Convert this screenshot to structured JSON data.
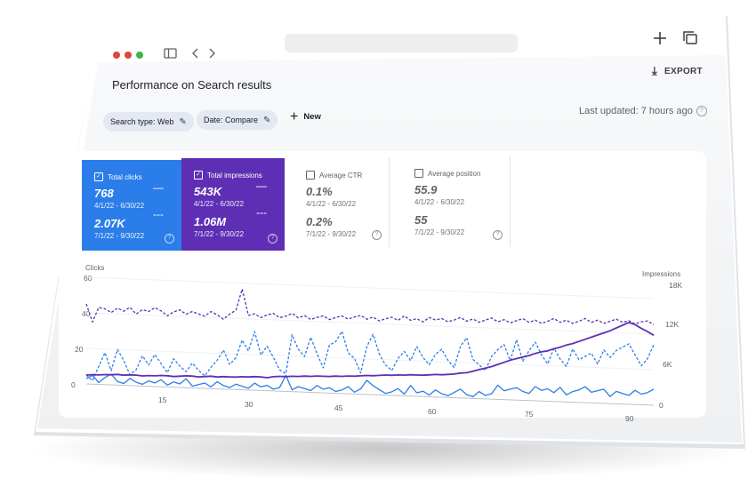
{
  "browser": {
    "traffic_lights": [
      "#e0443e",
      "#e0443e",
      "#3cb54a"
    ],
    "new_tab_icon": "plus-icon",
    "tabs_icon": "window-stack-icon"
  },
  "header": {
    "title": "Performance on Search results",
    "export_label": "EXPORT",
    "last_updated": "Last updated: 7 hours ago"
  },
  "filters": {
    "search_type": "Search type: Web",
    "date": "Date: Compare",
    "new_label": "New"
  },
  "metrics": [
    {
      "label": "Total clicks",
      "value1": "768",
      "range1": "4/1/22 - 6/30/22",
      "value2": "2.07K",
      "range2": "7/1/22 - 9/30/22",
      "checked": true,
      "color": "#2b7de9"
    },
    {
      "label": "Total impressions",
      "value1": "543K",
      "range1": "4/1/22 - 6/30/22",
      "value2": "1.06M",
      "range2": "7/1/22 - 9/30/22",
      "checked": true,
      "color": "#5e2fb4"
    },
    {
      "label": "Average CTR",
      "value1": "0.1%",
      "range1": "4/1/22 - 6/30/22",
      "value2": "0.2%",
      "range2": "7/1/22 - 9/30/22",
      "checked": false
    },
    {
      "label": "Average position",
      "value1": "55.9",
      "range1": "4/1/22 - 6/30/22",
      "value2": "55",
      "range2": "7/1/22 - 9/30/22",
      "checked": false
    }
  ],
  "chart_data": {
    "type": "line",
    "left_axis_label": "Clicks",
    "right_axis_label": "Impressions",
    "left_ticks": [
      "60",
      "40",
      "20",
      "0"
    ],
    "right_ticks": [
      "18K",
      "12K",
      "6K",
      "0"
    ],
    "x_ticks": [
      "15",
      "30",
      "45",
      "60",
      "75",
      "90"
    ],
    "left_ylim": [
      0,
      60
    ],
    "right_ylim": [
      0,
      18000
    ],
    "x_range": [
      1,
      92
    ],
    "grid": true,
    "series": [
      {
        "axis": "left",
        "style": "solid",
        "color": "#2b7de9",
        "values": [
          3,
          5,
          1,
          4,
          6,
          2,
          1,
          4,
          2,
          1,
          3,
          2,
          4,
          1,
          3,
          2,
          5,
          1,
          2,
          3,
          1,
          4,
          2,
          1,
          3,
          2,
          1,
          4,
          2,
          3,
          1,
          2,
          9,
          1,
          3,
          2,
          1,
          4,
          2,
          3,
          1,
          2,
          4,
          1,
          3,
          8,
          5,
          3,
          1,
          2,
          4,
          1,
          6,
          2,
          3,
          1,
          4,
          2,
          1,
          3,
          5,
          2,
          1,
          4,
          2,
          3,
          8,
          5,
          6,
          7,
          5,
          4,
          8,
          6,
          7,
          5,
          8,
          4,
          6,
          7,
          9,
          6,
          7,
          8,
          4,
          7,
          6,
          5,
          8,
          6,
          7,
          9
        ]
      },
      {
        "axis": "left",
        "style": "dashed",
        "color": "#2b7de9",
        "values": [
          5,
          2,
          10,
          18,
          8,
          20,
          14,
          6,
          9,
          17,
          12,
          18,
          13,
          8,
          16,
          12,
          9,
          14,
          10,
          7,
          12,
          16,
          22,
          14,
          18,
          28,
          22,
          33,
          20,
          25,
          19,
          12,
          10,
          32,
          24,
          20,
          31,
          22,
          14,
          27,
          29,
          35,
          23,
          20,
          12,
          27,
          34,
          23,
          17,
          14,
          21,
          25,
          20,
          28,
          22,
          18,
          24,
          27,
          21,
          17,
          29,
          34,
          22,
          19,
          16,
          24,
          28,
          31,
          22,
          34,
          22,
          28,
          33,
          26,
          21,
          30,
          24,
          20,
          30,
          24,
          26,
          28,
          22,
          30,
          26,
          30,
          32,
          34,
          28,
          22,
          26,
          34
        ]
      },
      {
        "axis": "right",
        "style": "solid",
        "color": "#5e2fb4",
        "values": [
          1500,
          1600,
          1600,
          1700,
          1700,
          1800,
          1700,
          1800,
          1800,
          1700,
          1800,
          1800,
          1900,
          1900,
          1800,
          1900,
          2000,
          2000,
          1900,
          2000,
          2100,
          2000,
          2100,
          2100,
          2100,
          2200,
          2200,
          2300,
          2300,
          2200,
          2400,
          2500,
          2500,
          2600,
          2600,
          2700,
          2700,
          2800,
          2800,
          2800,
          2900,
          2900,
          3000,
          3000,
          3100,
          3200,
          3200,
          3300,
          3400,
          3400,
          3500,
          3500,
          3600,
          3600,
          3600,
          3700,
          3800,
          3800,
          3900,
          4000,
          4200,
          4300,
          4600,
          4900,
          5200,
          5500,
          5900,
          6300,
          6700,
          7000,
          7300,
          7600,
          8000,
          8300,
          8500,
          8900,
          9200,
          9600,
          9900,
          10300,
          10700,
          11100,
          11500,
          11900,
          12300,
          12800,
          13300,
          13800,
          13500,
          12900,
          12400,
          11800
        ]
      },
      {
        "axis": "right",
        "style": "dashed",
        "color": "#5e2fb4",
        "values": [
          13500,
          10500,
          13000,
          12800,
          12200,
          13000,
          12500,
          13200,
          12100,
          12900,
          12600,
          13300,
          12800,
          12000,
          12700,
          13100,
          12400,
          12900,
          12500,
          12200,
          13000,
          12500,
          11800,
          12700,
          13400,
          17000,
          12600,
          12900,
          12300,
          12800,
          13100,
          12400,
          12700,
          13200,
          12500,
          12900,
          12300,
          12700,
          13000,
          12400,
          12800,
          13100,
          12600,
          13000,
          13300,
          12700,
          13100,
          12500,
          12900,
          13200,
          12700,
          13500,
          12800,
          13100,
          12600,
          13400,
          13000,
          13300,
          12800,
          13100,
          13600,
          13000,
          13400,
          12900,
          13300,
          13700,
          13100,
          13500,
          13000,
          13400,
          13800,
          13200,
          13600,
          13100,
          13500,
          14000,
          13400,
          13800,
          13300,
          13700,
          14200,
          13600,
          14000,
          13500,
          13900,
          14300,
          13800,
          14100,
          13600,
          14000,
          14200,
          13600
        ]
      }
    ]
  }
}
